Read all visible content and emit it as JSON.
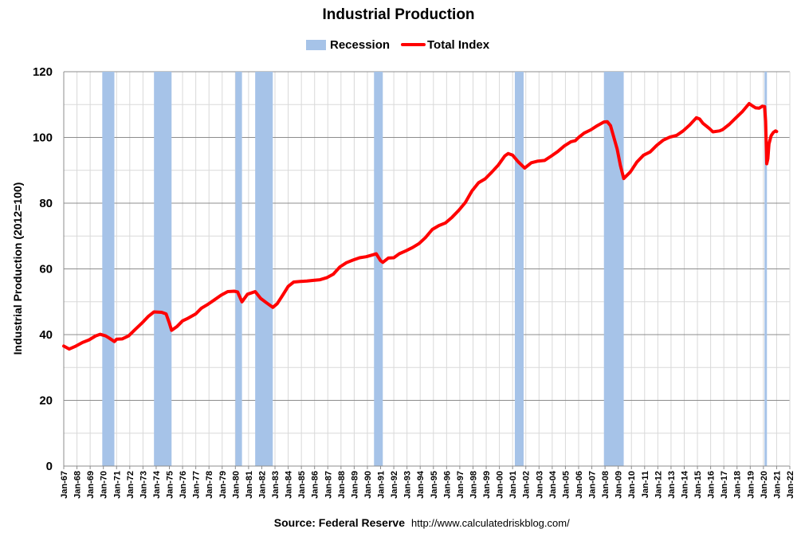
{
  "chart_data": {
    "type": "line",
    "title": "Industrial Production",
    "ylabel": "Industrial Production (2012=100)",
    "xlabel": "",
    "ylim": [
      0,
      120
    ],
    "yticks": [
      0,
      20,
      40,
      60,
      80,
      100,
      120
    ],
    "xlim": [
      "1967-01",
      "2022-01"
    ],
    "xticks": [
      "Jan-67",
      "Jan-68",
      "Jan-69",
      "Jan-70",
      "Jan-71",
      "Jan-72",
      "Jan-73",
      "Jan-74",
      "Jan-75",
      "Jan-76",
      "Jan-77",
      "Jan-78",
      "Jan-79",
      "Jan-80",
      "Jan-81",
      "Jan-82",
      "Jan-83",
      "Jan-84",
      "Jan-85",
      "Jan-86",
      "Jan-87",
      "Jan-88",
      "Jan-89",
      "Jan-90",
      "Jan-91",
      "Jan-92",
      "Jan-93",
      "Jan-94",
      "Jan-95",
      "Jan-96",
      "Jan-97",
      "Jan-98",
      "Jan-99",
      "Jan-00",
      "Jan-01",
      "Jan-02",
      "Jan-03",
      "Jan-04",
      "Jan-05",
      "Jan-06",
      "Jan-07",
      "Jan-08",
      "Jan-09",
      "Jan-10",
      "Jan-11",
      "Jan-12",
      "Jan-13",
      "Jan-14",
      "Jan-15",
      "Jan-16",
      "Jan-17",
      "Jan-18",
      "Jan-19",
      "Jan-20",
      "Jan-21",
      "Jan-22"
    ],
    "grid": true,
    "legend_position": "top-center",
    "legend": [
      {
        "label": "Recession",
        "color": "#a6c3e8",
        "kind": "patch"
      },
      {
        "label": "Total Index",
        "color": "#ff0000",
        "kind": "line"
      }
    ],
    "recessions": [
      {
        "start": "1969-12",
        "end": "1970-11"
      },
      {
        "start": "1973-11",
        "end": "1975-03"
      },
      {
        "start": "1980-01",
        "end": "1980-07"
      },
      {
        "start": "1981-07",
        "end": "1982-11"
      },
      {
        "start": "1990-07",
        "end": "1991-03"
      },
      {
        "start": "2001-03",
        "end": "2001-11"
      },
      {
        "start": "2007-12",
        "end": "2009-06"
      },
      {
        "start": "2020-02",
        "end": "2020-04"
      }
    ],
    "series": [
      {
        "name": "Total Index",
        "color": "#ff0000",
        "points": [
          [
            "1967-01",
            36.5
          ],
          [
            "1967-06",
            35.6
          ],
          [
            "1967-12",
            36.5
          ],
          [
            "1968-06",
            37.6
          ],
          [
            "1968-12",
            38.4
          ],
          [
            "1969-06",
            39.6
          ],
          [
            "1969-10",
            40.1
          ],
          [
            "1970-03",
            39.6
          ],
          [
            "1970-06",
            39.0
          ],
          [
            "1970-11",
            37.9
          ],
          [
            "1971-01",
            38.6
          ],
          [
            "1971-06",
            38.7
          ],
          [
            "1971-12",
            39.6
          ],
          [
            "1972-06",
            41.6
          ],
          [
            "1972-12",
            43.5
          ],
          [
            "1973-06",
            45.6
          ],
          [
            "1973-11",
            46.9
          ],
          [
            "1974-06",
            46.8
          ],
          [
            "1974-10",
            46.3
          ],
          [
            "1975-01",
            43.5
          ],
          [
            "1975-03",
            41.3
          ],
          [
            "1975-08",
            42.5
          ],
          [
            "1976-01",
            44.2
          ],
          [
            "1976-06",
            45.0
          ],
          [
            "1977-01",
            46.3
          ],
          [
            "1977-06",
            48.0
          ],
          [
            "1977-12",
            49.2
          ],
          [
            "1978-06",
            50.6
          ],
          [
            "1978-12",
            52.0
          ],
          [
            "1979-06",
            53.1
          ],
          [
            "1979-12",
            53.2
          ],
          [
            "1980-03",
            53.0
          ],
          [
            "1980-07",
            50.0
          ],
          [
            "1980-12",
            52.3
          ],
          [
            "1981-07",
            53.1
          ],
          [
            "1981-12",
            51.0
          ],
          [
            "1982-06",
            49.5
          ],
          [
            "1982-11",
            48.3
          ],
          [
            "1983-03",
            49.4
          ],
          [
            "1983-08",
            52.0
          ],
          [
            "1984-01",
            54.7
          ],
          [
            "1984-06",
            56.0
          ],
          [
            "1984-12",
            56.2
          ],
          [
            "1985-06",
            56.3
          ],
          [
            "1985-12",
            56.5
          ],
          [
            "1986-06",
            56.7
          ],
          [
            "1986-12",
            57.3
          ],
          [
            "1987-06",
            58.4
          ],
          [
            "1987-12",
            60.6
          ],
          [
            "1988-06",
            61.9
          ],
          [
            "1988-12",
            62.7
          ],
          [
            "1989-06",
            63.4
          ],
          [
            "1989-12",
            63.7
          ],
          [
            "1990-06",
            64.3
          ],
          [
            "1990-09",
            64.6
          ],
          [
            "1991-01",
            62.5
          ],
          [
            "1991-03",
            62.0
          ],
          [
            "1991-08",
            63.3
          ],
          [
            "1992-01",
            63.4
          ],
          [
            "1992-06",
            64.6
          ],
          [
            "1992-12",
            65.5
          ],
          [
            "1993-06",
            66.5
          ],
          [
            "1993-12",
            67.7
          ],
          [
            "1994-06",
            69.6
          ],
          [
            "1994-12",
            72.0
          ],
          [
            "1995-06",
            73.2
          ],
          [
            "1995-12",
            74.0
          ],
          [
            "1996-06",
            75.7
          ],
          [
            "1996-12",
            77.8
          ],
          [
            "1997-06",
            80.2
          ],
          [
            "1997-12",
            83.7
          ],
          [
            "1998-06",
            86.2
          ],
          [
            "1998-12",
            87.4
          ],
          [
            "1999-06",
            89.4
          ],
          [
            "1999-12",
            91.6
          ],
          [
            "2000-06",
            94.4
          ],
          [
            "2000-09",
            95.1
          ],
          [
            "2001-01",
            94.6
          ],
          [
            "2001-06",
            92.6
          ],
          [
            "2001-12",
            90.7
          ],
          [
            "2002-06",
            92.3
          ],
          [
            "2002-12",
            92.8
          ],
          [
            "2003-06",
            93.0
          ],
          [
            "2003-12",
            94.3
          ],
          [
            "2004-06",
            95.7
          ],
          [
            "2004-12",
            97.4
          ],
          [
            "2005-06",
            98.7
          ],
          [
            "2005-10",
            99.0
          ],
          [
            "2006-01",
            100.0
          ],
          [
            "2006-06",
            101.3
          ],
          [
            "2006-12",
            102.3
          ],
          [
            "2007-06",
            103.6
          ],
          [
            "2007-12",
            104.7
          ],
          [
            "2008-03",
            104.8
          ],
          [
            "2008-06",
            103.6
          ],
          [
            "2008-09",
            100.0
          ],
          [
            "2008-12",
            96.5
          ],
          [
            "2009-03",
            91.5
          ],
          [
            "2009-06",
            87.5
          ],
          [
            "2009-12",
            89.5
          ],
          [
            "2010-06",
            92.5
          ],
          [
            "2010-12",
            94.6
          ],
          [
            "2011-06",
            95.6
          ],
          [
            "2011-12",
            97.6
          ],
          [
            "2012-06",
            99.2
          ],
          [
            "2012-12",
            100.1
          ],
          [
            "2013-06",
            100.6
          ],
          [
            "2013-12",
            102.0
          ],
          [
            "2014-06",
            103.8
          ],
          [
            "2014-12",
            106.0
          ],
          [
            "2015-03",
            105.6
          ],
          [
            "2015-06",
            104.3
          ],
          [
            "2015-12",
            102.7
          ],
          [
            "2016-03",
            101.7
          ],
          [
            "2016-09",
            102.0
          ],
          [
            "2016-12",
            102.4
          ],
          [
            "2017-06",
            104.0
          ],
          [
            "2017-12",
            106.0
          ],
          [
            "2018-06",
            107.9
          ],
          [
            "2018-12",
            110.3
          ],
          [
            "2019-03",
            109.6
          ],
          [
            "2019-06",
            109.0
          ],
          [
            "2019-09",
            108.9
          ],
          [
            "2019-12",
            109.5
          ],
          [
            "2020-02",
            109.4
          ],
          [
            "2020-03",
            105.0
          ],
          [
            "2020-04",
            92.0
          ],
          [
            "2020-05",
            93.5
          ],
          [
            "2020-06",
            98.0
          ],
          [
            "2020-08",
            100.5
          ],
          [
            "2020-10",
            101.5
          ],
          [
            "2020-12",
            102.0
          ],
          [
            "2021-01",
            101.8
          ]
        ]
      }
    ]
  },
  "source": {
    "label": "Source: Federal Reserve",
    "url": "http://www.calculatedriskblog.com/"
  }
}
